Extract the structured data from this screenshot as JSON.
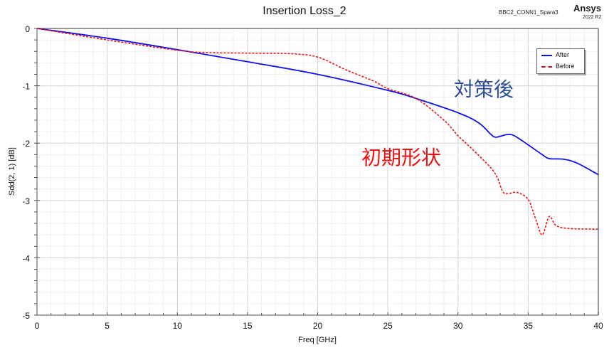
{
  "header": {
    "title": "Insertion Loss_2",
    "project": "BBC2_CONN1_Spara3",
    "brand": "Ansys",
    "version": "2022 R2"
  },
  "legend": {
    "items": [
      {
        "label": "After",
        "color": "#1111ee",
        "style": "solid"
      },
      {
        "label": "Before",
        "color": "#ee1111",
        "style": "dashed"
      }
    ]
  },
  "annotations": {
    "after": "対策後",
    "before": "初期形状"
  },
  "chart_data": {
    "type": "line",
    "title": "Insertion Loss_2",
    "xlabel": "Freq [GHz]",
    "ylabel": "Sdd(2, 1) [dB]",
    "xlim": [
      0,
      40
    ],
    "ylim": [
      -5,
      0
    ],
    "xticks": [
      0,
      5,
      10,
      15,
      20,
      25,
      30,
      35,
      40
    ],
    "yticks": [
      0,
      -1,
      -2,
      -3,
      -4,
      -5
    ],
    "grid": true,
    "legend_position": "upper right",
    "series": [
      {
        "name": "After",
        "color": "#1111ee",
        "style": "solid",
        "x": [
          0,
          5,
          10,
          15,
          20,
          25,
          27,
          30,
          31.5,
          32.5,
          33,
          33.5,
          34,
          35,
          36,
          36.5,
          37.5,
          38.5,
          40
        ],
        "y": [
          0,
          -0.17,
          -0.37,
          -0.58,
          -0.8,
          -1.08,
          -1.22,
          -1.47,
          -1.65,
          -1.88,
          -1.88,
          -1.85,
          -1.87,
          -2.03,
          -2.2,
          -2.27,
          -2.28,
          -2.35,
          -2.55
        ]
      },
      {
        "name": "Before",
        "color": "#ee1111",
        "style": "dashed",
        "x": [
          0,
          5,
          10,
          12,
          15,
          18,
          20,
          22,
          24,
          25,
          27,
          29,
          30,
          31,
          32.3,
          32.8,
          33.2,
          33.6,
          34.2,
          35,
          35.5,
          36,
          36.5,
          37,
          38,
          40
        ],
        "y": [
          0,
          -0.2,
          -0.38,
          -0.42,
          -0.43,
          -0.44,
          -0.5,
          -0.72,
          -0.92,
          -1.05,
          -1.22,
          -1.6,
          -1.87,
          -2.1,
          -2.42,
          -2.6,
          -2.85,
          -2.88,
          -2.86,
          -2.98,
          -3.3,
          -3.6,
          -3.28,
          -3.44,
          -3.49,
          -3.5
        ]
      }
    ]
  }
}
